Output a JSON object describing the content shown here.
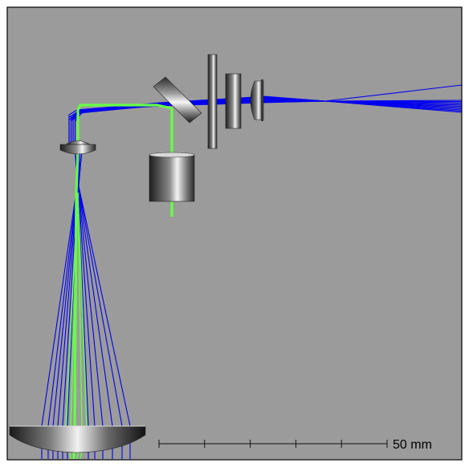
{
  "scene": {
    "background_color": "#9b9b9b",
    "frame_color": "#000000",
    "beam_colors": {
      "ray": "#0000ee",
      "laser": "#66ff44"
    }
  },
  "scale_bar": {
    "label": "50 mm",
    "tick_count": 6
  },
  "components": [
    {
      "name": "primary-mirror",
      "kind": "concave mirror"
    },
    {
      "name": "secondary-lens",
      "kind": "small lens"
    },
    {
      "name": "fold-mirror",
      "kind": "tilted flat mirror"
    },
    {
      "name": "laser-source",
      "kind": "cylindrical housing"
    },
    {
      "name": "field-plate",
      "kind": "thin plate"
    },
    {
      "name": "window-plate",
      "kind": "thick plate"
    },
    {
      "name": "eyepiece-lens",
      "kind": "plano-convex lens"
    }
  ]
}
